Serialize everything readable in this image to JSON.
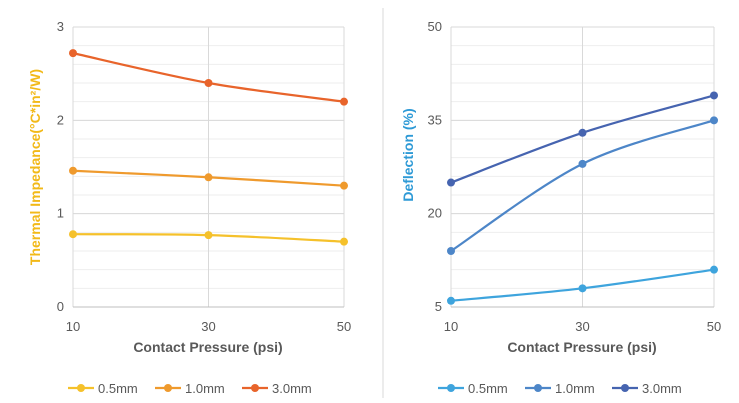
{
  "chart_data": [
    {
      "type": "line",
      "xlabel": "Contact Pressure (psi)",
      "ylabel": "Thermal Impedance(°C*in²/W)",
      "ylabel_color": "#f2b918",
      "x": [
        10,
        30,
        50
      ],
      "x_ticks": [
        "10",
        "30",
        "50"
      ],
      "ylim": [
        0,
        3
      ],
      "y_ticks": [
        "0",
        "1",
        "2",
        "3"
      ],
      "y_minor_grid_step": 0.2,
      "legend_position": "bottom",
      "series": [
        {
          "name": "0.5mm",
          "color": "#f5c12b",
          "values": [
            0.78,
            0.77,
            0.7
          ]
        },
        {
          "name": "1.0mm",
          "color": "#ef9a2d",
          "values": [
            1.46,
            1.39,
            1.3
          ]
        },
        {
          "name": "3.0mm",
          "color": "#e8642b",
          "values": [
            2.72,
            2.4,
            2.2
          ]
        }
      ]
    },
    {
      "type": "line",
      "xlabel": "Contact Pressure (psi)",
      "ylabel": "Deflection (%)",
      "ylabel_color": "#2e9ad6",
      "x": [
        10,
        30,
        50
      ],
      "x_ticks": [
        "10",
        "30",
        "50"
      ],
      "ylim": [
        5,
        50
      ],
      "y_ticks": [
        "5",
        "20",
        "35",
        "50"
      ],
      "y_minor_grid_step": 3,
      "legend_position": "bottom",
      "series": [
        {
          "name": "0.5mm",
          "color": "#3ea4dd",
          "values": [
            6.0,
            8.0,
            11.0
          ]
        },
        {
          "name": "1.0mm",
          "color": "#4d86c8",
          "values": [
            14.0,
            28.0,
            35.0
          ]
        },
        {
          "name": "3.0mm",
          "color": "#4664b0",
          "values": [
            25.0,
            33.0,
            39.0
          ]
        }
      ]
    }
  ]
}
